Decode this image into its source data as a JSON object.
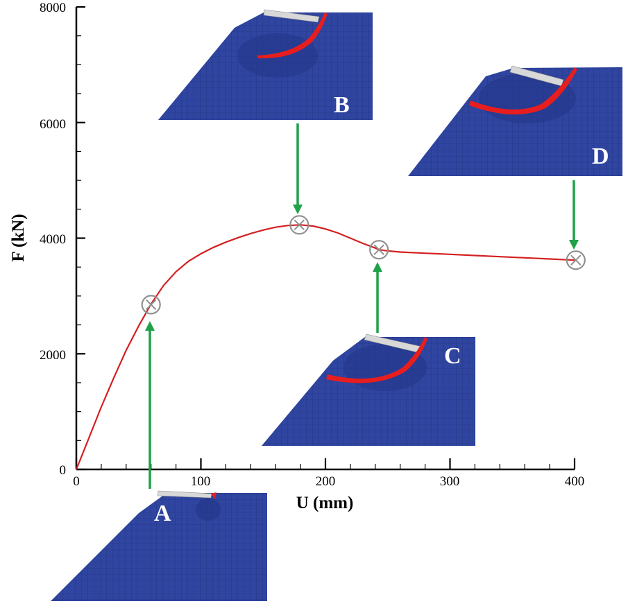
{
  "chart_data": {
    "type": "line",
    "xlabel": "U (mm)",
    "ylabel": "F (kN)",
    "xlim": [
      0,
      400
    ],
    "ylim": [
      0,
      8000
    ],
    "x_ticks": [
      "0",
      "100",
      "200",
      "300",
      "400"
    ],
    "y_ticks": [
      "0",
      "2000",
      "4000",
      "6000",
      "8000"
    ],
    "grid": false,
    "series": [
      {
        "color": "#d42020",
        "x": [
          0,
          10,
          20,
          30,
          40,
          50,
          60,
          70,
          80,
          90,
          100,
          110,
          120,
          130,
          140,
          150,
          160,
          170,
          180,
          190,
          200,
          210,
          220,
          230,
          240,
          243,
          250,
          260,
          280,
          300,
          320,
          340,
          360,
          380,
          400
        ],
        "y": [
          0,
          540,
          1080,
          1580,
          2060,
          2480,
          2860,
          3180,
          3420,
          3600,
          3730,
          3840,
          3930,
          4010,
          4080,
          4140,
          4190,
          4220,
          4230,
          4210,
          4160,
          4090,
          4000,
          3910,
          3830,
          3800,
          3780,
          3760,
          3740,
          3720,
          3700,
          3680,
          3660,
          3640,
          3620
        ]
      }
    ],
    "markers": [
      {
        "label": "A",
        "x": 60,
        "y": 2850
      },
      {
        "label": "B",
        "x": 179,
        "y": 4230
      },
      {
        "label": "C",
        "x": 243,
        "y": 3800
      },
      {
        "label": "D",
        "x": 401,
        "y": 3620
      }
    ]
  },
  "colors": {
    "curve": "#d42020",
    "arrow": "#1fa24a",
    "marker": "#909090",
    "mesh": "#2f45a0",
    "plate_dark": "#24378a",
    "crack": "#e81e1e",
    "indenter": "#d8d8d8"
  },
  "icons": {
    "marker": "circle-x-marker-icon"
  }
}
